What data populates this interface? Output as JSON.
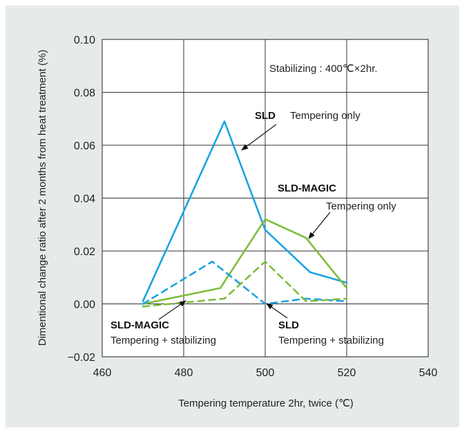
{
  "chart_data": {
    "type": "line",
    "xlabel": "Tempering temperature 2hr, twice (℃)",
    "ylabel": "Dimentional change ratio after 2 months from heat treatment (%)",
    "xlim": [
      460,
      540
    ],
    "ylim": [
      -0.02,
      0.1
    ],
    "x_ticks": [
      "460",
      "480",
      "500",
      "520",
      "540"
    ],
    "y_ticks": [
      "−0.02",
      "0.00",
      "0.02",
      "0.04",
      "0.06",
      "0.08",
      "0.10"
    ],
    "grid": true,
    "series": [
      {
        "name": "SLD Tempering only",
        "color": "#1aa3e0",
        "style": "solid",
        "x": [
          470,
          490,
          500,
          511,
          520
        ],
        "y": [
          0.001,
          0.069,
          0.028,
          0.012,
          0.008
        ]
      },
      {
        "name": "SLD-MAGIC Tempering only",
        "color": "#7dbd3a",
        "style": "solid",
        "x": [
          470,
          489,
          500,
          510,
          520
        ],
        "y": [
          0.0,
          0.006,
          0.032,
          0.025,
          0.006
        ]
      },
      {
        "name": "SLD Tempering + stabilizing",
        "color": "#1aa3e0",
        "style": "dashed",
        "x": [
          470,
          487,
          500,
          510,
          520
        ],
        "y": [
          0.0,
          0.016,
          0.0,
          0.002,
          0.001
        ]
      },
      {
        "name": "SLD-MAGIC Tempering + stabilizing",
        "color": "#7dbd3a",
        "style": "dashed",
        "x": [
          470,
          490,
          500,
          510,
          520
        ],
        "y": [
          -0.001,
          0.002,
          0.016,
          0.001,
          0.002
        ]
      }
    ],
    "annotations": {
      "stabilizing": "Stabilizing : 400℃×2hr.",
      "sld_label": "SLD",
      "sld_desc": "Tempering only",
      "magic_label": "SLD-MAGIC",
      "magic_desc": "Tempering only",
      "magic_stab_label": "SLD-MAGIC",
      "magic_stab_desc": "Tempering + stabilizing",
      "sld_stab_label": "SLD",
      "sld_stab_desc": "Tempering + stabilizing"
    }
  }
}
